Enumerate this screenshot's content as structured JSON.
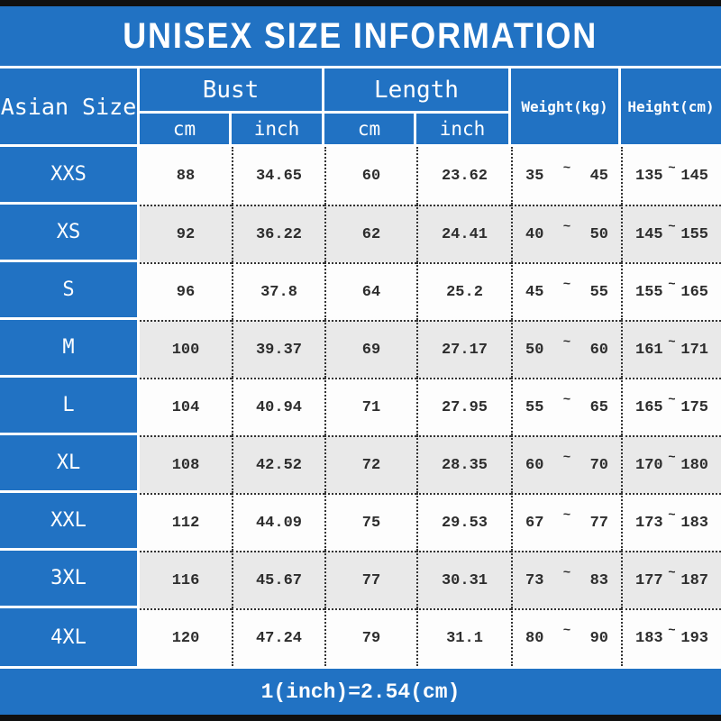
{
  "title": "UNISEX SIZE INFORMATION",
  "footer_note": "1(inch)=2.54(cm)",
  "symbols": {
    "tilde": "~"
  },
  "header": {
    "corner": "Asian Size",
    "bust": "Bust",
    "length": "Length",
    "bust_cm": "cm",
    "bust_inch": "inch",
    "length_cm": "cm",
    "length_inch": "inch",
    "weight": "Weight(kg)",
    "height": "Height(cm)"
  },
  "colors": {
    "accent_blue": "#2172c3",
    "alt_row_gray": "#e9e9e9",
    "frame_black": "#101010",
    "text_dark": "#2d2d2d",
    "text_white": "#ffffff"
  },
  "chart_data": {
    "type": "table",
    "title": "UNISEX SIZE INFORMATION",
    "column_groups": [
      {
        "label": "Bust",
        "sub_columns": [
          "cm",
          "inch"
        ]
      },
      {
        "label": "Length",
        "sub_columns": [
          "cm",
          "inch"
        ]
      }
    ],
    "columns": [
      "Asian Size",
      "Bust cm",
      "Bust inch",
      "Length cm",
      "Length inch",
      "Weight(kg)",
      "Height(cm)"
    ],
    "rows": [
      {
        "size": "XXS",
        "bust_cm": "88",
        "bust_inch": "34.65",
        "length_cm": "60",
        "length_inch": "23.62",
        "weight_min": "35",
        "weight_max": "45",
        "height_min": "135",
        "height_max": "145"
      },
      {
        "size": "XS",
        "bust_cm": "92",
        "bust_inch": "36.22",
        "length_cm": "62",
        "length_inch": "24.41",
        "weight_min": "40",
        "weight_max": "50",
        "height_min": "145",
        "height_max": "155"
      },
      {
        "size": "S",
        "bust_cm": "96",
        "bust_inch": "37.8",
        "length_cm": "64",
        "length_inch": "25.2",
        "weight_min": "45",
        "weight_max": "55",
        "height_min": "155",
        "height_max": "165"
      },
      {
        "size": "M",
        "bust_cm": "100",
        "bust_inch": "39.37",
        "length_cm": "69",
        "length_inch": "27.17",
        "weight_min": "50",
        "weight_max": "60",
        "height_min": "161",
        "height_max": "171"
      },
      {
        "size": "L",
        "bust_cm": "104",
        "bust_inch": "40.94",
        "length_cm": "71",
        "length_inch": "27.95",
        "weight_min": "55",
        "weight_max": "65",
        "height_min": "165",
        "height_max": "175"
      },
      {
        "size": "XL",
        "bust_cm": "108",
        "bust_inch": "42.52",
        "length_cm": "72",
        "length_inch": "28.35",
        "weight_min": "60",
        "weight_max": "70",
        "height_min": "170",
        "height_max": "180"
      },
      {
        "size": "XXL",
        "bust_cm": "112",
        "bust_inch": "44.09",
        "length_cm": "75",
        "length_inch": "29.53",
        "weight_min": "67",
        "weight_max": "77",
        "height_min": "173",
        "height_max": "183"
      },
      {
        "size": "3XL",
        "bust_cm": "116",
        "bust_inch": "45.67",
        "length_cm": "77",
        "length_inch": "30.31",
        "weight_min": "73",
        "weight_max": "83",
        "height_min": "177",
        "height_max": "187"
      },
      {
        "size": "4XL",
        "bust_cm": "120",
        "bust_inch": "47.24",
        "length_cm": "79",
        "length_inch": "31.1",
        "weight_min": "80",
        "weight_max": "90",
        "height_min": "183",
        "height_max": "193"
      }
    ],
    "footnote": "1(inch)=2.54(cm)"
  }
}
